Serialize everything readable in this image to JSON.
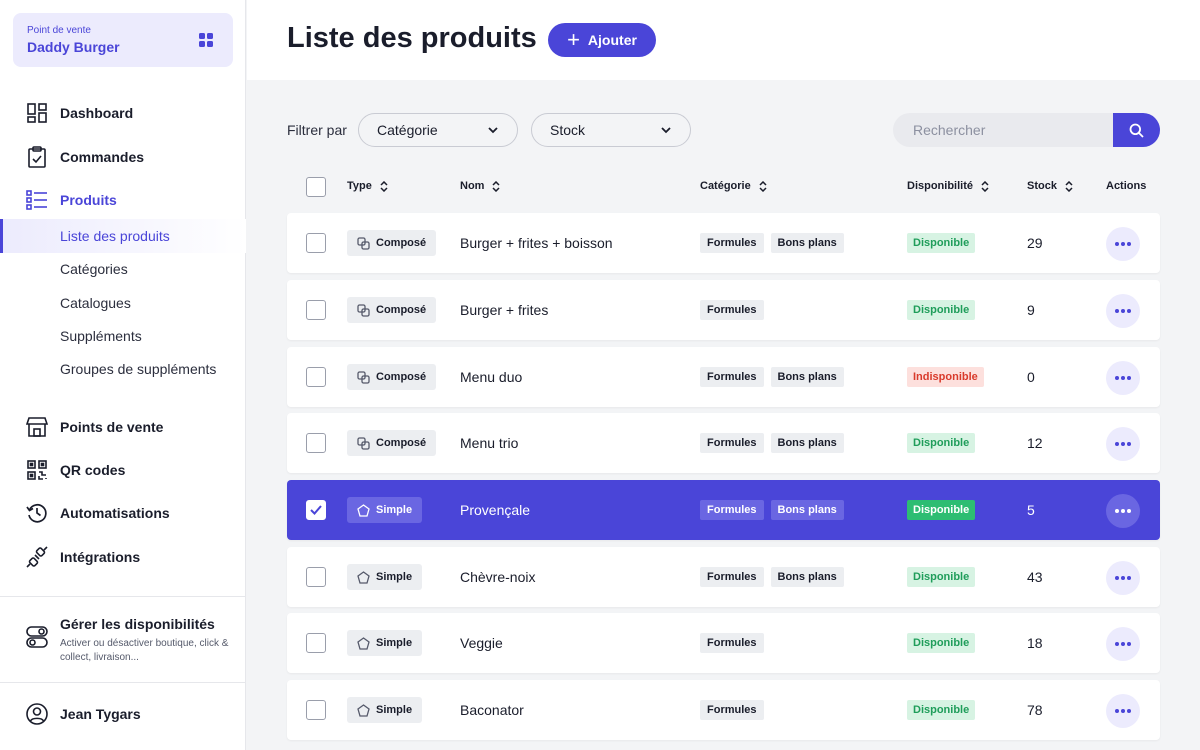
{
  "store": {
    "label": "Point de vente",
    "name": "Daddy Burger"
  },
  "nav": {
    "dashboard": "Dashboard",
    "commandes": "Commandes",
    "produits": "Produits",
    "sub": [
      "Liste des produits",
      "Catégories",
      "Catalogues",
      "Suppléments",
      "Groupes de suppléments"
    ],
    "points_de_vente": "Points de vente",
    "qr_codes": "QR codes",
    "automatisations": "Automatisations",
    "integrations": "Intégrations"
  },
  "availability": {
    "title": "Gérer les disponibilités",
    "desc": "Activer ou désactiver boutique, click & collect, livraison..."
  },
  "user": {
    "name": "Jean Tygars"
  },
  "header": {
    "title": "Liste des produits",
    "add_label": "Ajouter"
  },
  "filters": {
    "label": "Filtrer par",
    "category": "Catégorie",
    "stock": "Stock",
    "search_placeholder": "Rechercher"
  },
  "columns": {
    "type": "Type",
    "nom": "Nom",
    "categorie": "Catégorie",
    "disponibilite": "Disponibilité",
    "stock": "Stock",
    "actions": "Actions"
  },
  "colors": {
    "accent": "#4a45d8",
    "available": "#1f9d5a",
    "unavailable": "#d93a2b"
  },
  "rows": [
    {
      "type": "Composé",
      "name": "Burger + frites + boisson",
      "cats": [
        "Formules",
        "Bons plans"
      ],
      "status": "Disponible",
      "stock": "29"
    },
    {
      "type": "Composé",
      "name": "Burger + frites",
      "cats": [
        "Formules"
      ],
      "status": "Disponible",
      "stock": "9"
    },
    {
      "type": "Composé",
      "name": "Menu duo",
      "cats": [
        "Formules",
        "Bons plans"
      ],
      "status": "Indisponible",
      "stock": "0"
    },
    {
      "type": "Composé",
      "name": "Menu trio",
      "cats": [
        "Formules",
        "Bons plans"
      ],
      "status": "Disponible",
      "stock": "12"
    },
    {
      "type": "Simple",
      "name": "Provençale",
      "cats": [
        "Formules",
        "Bons plans"
      ],
      "status": "Disponible",
      "stock": "5"
    },
    {
      "type": "Simple",
      "name": "Chèvre-noix",
      "cats": [
        "Formules",
        "Bons plans"
      ],
      "status": "Disponible",
      "stock": "43"
    },
    {
      "type": "Simple",
      "name": "Veggie",
      "cats": [
        "Formules"
      ],
      "status": "Disponible",
      "stock": "18"
    },
    {
      "type": "Simple",
      "name": "Baconator",
      "cats": [
        "Formules"
      ],
      "status": "Disponible",
      "stock": "78"
    }
  ]
}
